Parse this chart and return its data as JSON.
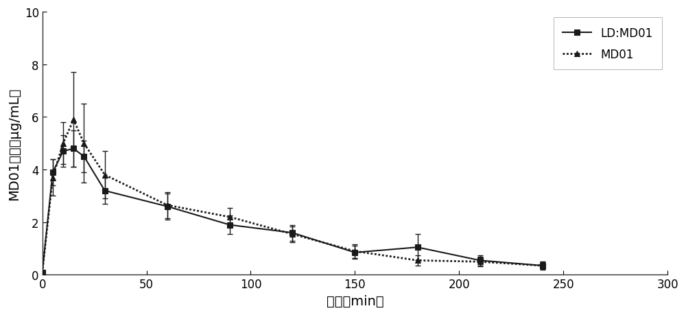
{
  "ld_md01_x": [
    0,
    5,
    10,
    15,
    20,
    30,
    60,
    90,
    120,
    150,
    180,
    210,
    240
  ],
  "ld_md01_y": [
    0.1,
    3.9,
    4.7,
    4.8,
    4.5,
    3.2,
    2.6,
    1.9,
    1.6,
    0.85,
    1.05,
    0.55,
    0.35
  ],
  "ld_md01_yerr": [
    0.05,
    0.5,
    0.6,
    0.7,
    0.6,
    0.5,
    0.5,
    0.35,
    0.3,
    0.25,
    0.5,
    0.2,
    0.15
  ],
  "md01_x": [
    0,
    5,
    10,
    15,
    20,
    30,
    60,
    90,
    120,
    150,
    180,
    210,
    240
  ],
  "md01_y": [
    0.1,
    3.7,
    5.0,
    5.9,
    5.0,
    3.8,
    2.65,
    2.2,
    1.55,
    0.9,
    0.55,
    0.5,
    0.35
  ],
  "md01_yerr": [
    0.05,
    0.7,
    0.8,
    1.8,
    1.5,
    0.9,
    0.5,
    0.35,
    0.3,
    0.25,
    0.2,
    0.18,
    0.12
  ],
  "xlabel": "时间（min）",
  "ylabel": "MD01浓度（μg/mL）",
  "xlim": [
    0,
    300
  ],
  "ylim": [
    0,
    10
  ],
  "xticks": [
    0,
    50,
    100,
    150,
    200,
    250,
    300
  ],
  "yticks": [
    0,
    2,
    4,
    6,
    8,
    10
  ],
  "legend_ld": "LD:MD01",
  "legend_md": "MD01",
  "line_color": "#1a1a1a",
  "bg_color": "#ffffff",
  "marker_size": 6,
  "line_width": 1.5,
  "font_size": 13,
  "label_font_size": 14,
  "capsize": 3,
  "elinewidth": 1.0
}
